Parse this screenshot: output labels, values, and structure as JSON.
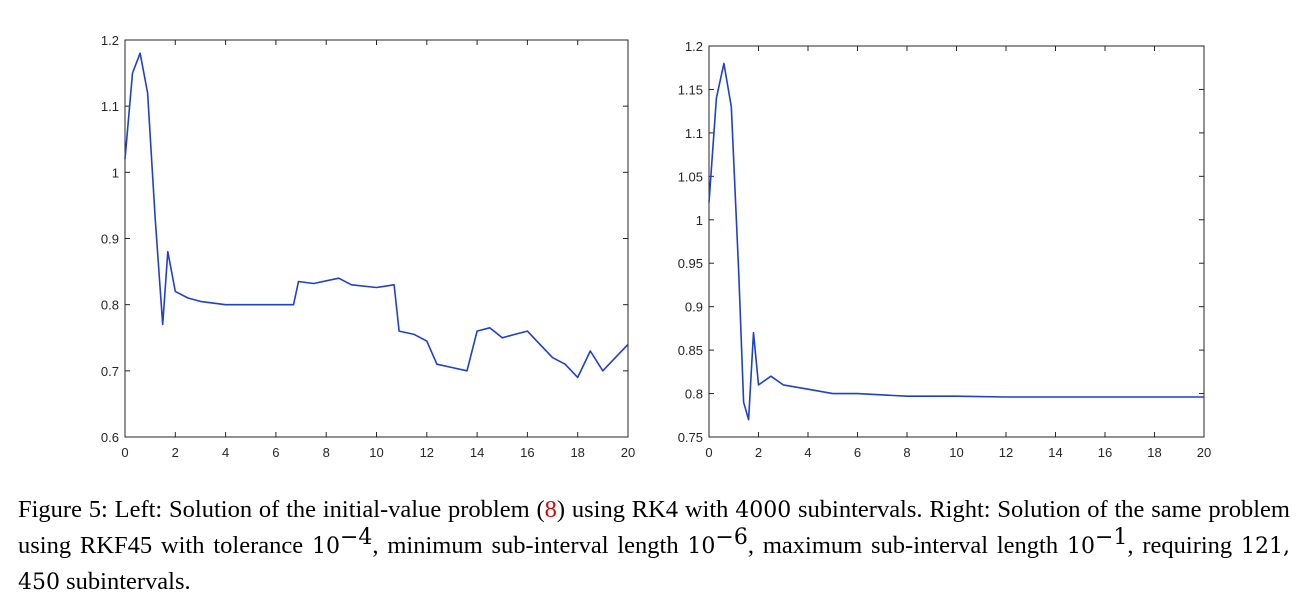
{
  "chart_data": [
    {
      "type": "line",
      "xlim": [
        0,
        20
      ],
      "ylim": [
        0.6,
        1.2
      ],
      "xticks": [
        "0",
        "2",
        "4",
        "6",
        "8",
        "10",
        "12",
        "14",
        "16",
        "18",
        "20"
      ],
      "yticks": [
        "0.6",
        "0.7",
        "0.8",
        "0.9",
        "1",
        "1.1",
        "1.2"
      ],
      "series_color": "#1f3fd0",
      "grid": false,
      "series": [
        {
          "x": [
            0,
            0.3,
            0.6,
            0.9,
            1.2,
            1.5,
            1.7,
            2.0,
            2.5,
            3.0,
            4.0,
            6.7,
            6.9,
            7.5,
            8.5,
            9.0,
            10.0,
            10.7,
            10.9,
            11.5,
            12.0,
            12.4,
            13.0,
            13.6,
            14.0,
            14.5,
            15.0,
            15.5,
            16.0,
            16.5,
            17.0,
            17.5,
            18.0,
            18.5,
            19.0,
            19.5,
            20.0
          ],
          "y": [
            1.02,
            1.15,
            1.18,
            1.12,
            0.93,
            0.77,
            0.88,
            0.82,
            0.81,
            0.805,
            0.8,
            0.8,
            0.835,
            0.832,
            0.84,
            0.83,
            0.826,
            0.83,
            0.76,
            0.755,
            0.745,
            0.71,
            0.705,
            0.7,
            0.76,
            0.765,
            0.75,
            0.755,
            0.76,
            0.74,
            0.72,
            0.71,
            0.69,
            0.73,
            0.7,
            0.72,
            0.74
          ]
        }
      ]
    },
    {
      "type": "line",
      "xlim": [
        0,
        20
      ],
      "ylim": [
        0.75,
        1.2
      ],
      "xticks": [
        "0",
        "2",
        "4",
        "6",
        "8",
        "10",
        "12",
        "14",
        "16",
        "18",
        "20"
      ],
      "yticks": [
        "0.75",
        "0.8",
        "0.85",
        "0.9",
        "0.95",
        "1",
        "1.05",
        "1.1",
        "1.15",
        "1.2"
      ],
      "series_color": "#1f3fd0",
      "grid": false,
      "series": [
        {
          "x": [
            0,
            0.3,
            0.6,
            0.9,
            1.2,
            1.4,
            1.6,
            1.8,
            2.0,
            2.5,
            3.0,
            4.0,
            5.0,
            6.0,
            8.0,
            10.0,
            12.0,
            14.0,
            16.0,
            18.0,
            20.0
          ],
          "y": [
            1.02,
            1.14,
            1.18,
            1.13,
            0.94,
            0.79,
            0.77,
            0.87,
            0.81,
            0.82,
            0.81,
            0.805,
            0.8,
            0.8,
            0.797,
            0.797,
            0.796,
            0.796,
            0.796,
            0.796,
            0.796
          ]
        }
      ]
    }
  ],
  "caption": {
    "label": "Figure 5:",
    "text_a": " Left: Solution of the initial-value problem (",
    "ref": "8",
    "text_b": ") using RK4 with ",
    "n1": "4000",
    "text_c": " subintervals. Right: Solution of the same problem using RKF45 with tolerance ",
    "tol_base": "10",
    "tol_exp": "−4",
    "text_d": ", minimum sub-interval length ",
    "min_base": "10",
    "min_exp": "−6",
    "text_e": ", maximum sub-interval length ",
    "max_base": "10",
    "max_exp": "−1",
    "text_f": ", requiring ",
    "n2": "121, 450",
    "text_g": " subintervals."
  }
}
